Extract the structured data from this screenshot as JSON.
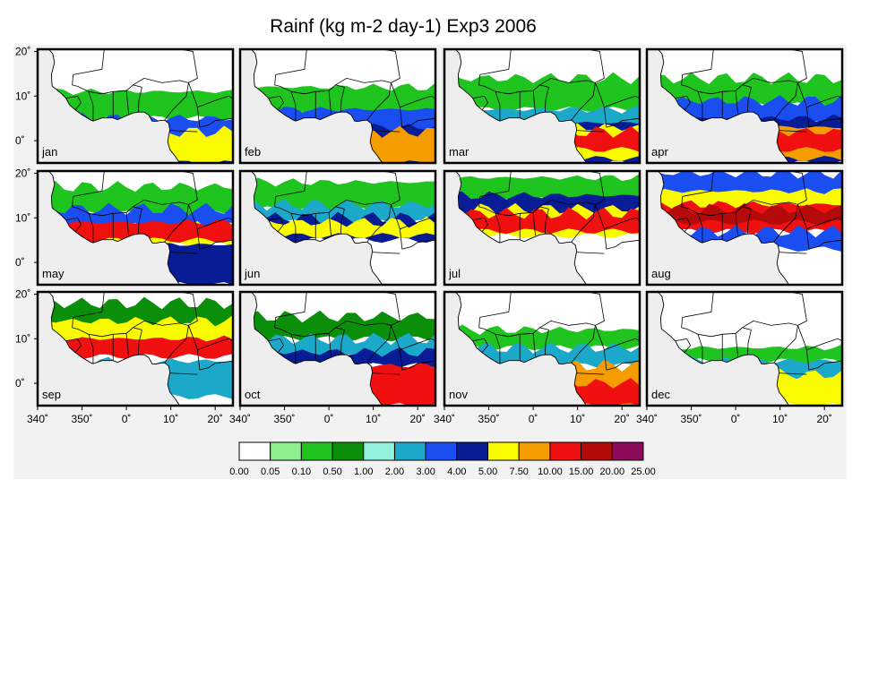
{
  "title": "Rainf (kg m-2 day-1) Exp3 2006",
  "months": [
    "jan",
    "feb",
    "mar",
    "apr",
    "may",
    "jun",
    "jul",
    "aug",
    "sep",
    "oct",
    "nov",
    "dec"
  ],
  "lat_ticks": [
    "20˚",
    "10˚",
    "0˚"
  ],
  "lon_ticks": [
    "340˚",
    "350˚",
    "0˚",
    "10˚",
    "20˚"
  ],
  "colorbar": {
    "colors": [
      "#ffffff",
      "#8ef08e",
      "#1fc41f",
      "#0b8f0b",
      "#92f0dc",
      "#1ca8c8",
      "#1b4ef0",
      "#081c96",
      "#fafa00",
      "#f59c00",
      "#f01010",
      "#b40a0a",
      "#8c0a5a"
    ],
    "labels": [
      "0.00",
      "0.05",
      "0.10",
      "0.50",
      "1.00",
      "2.00",
      "3.00",
      "4.00",
      "5.00",
      "7.50",
      "10.00",
      "15.00",
      "20.00",
      "25.00"
    ]
  },
  "map_colors": {
    "ocean": "#eeeeee",
    "land": "#ffffff",
    "border": "#000000"
  }
}
